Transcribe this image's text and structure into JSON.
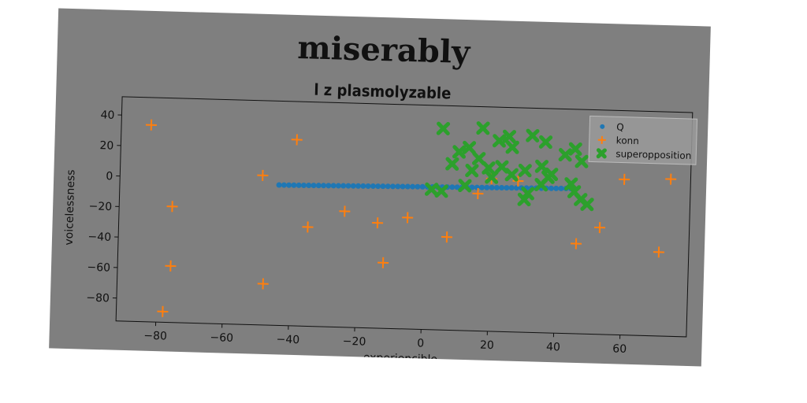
{
  "chart_data": {
    "type": "scatter",
    "title": "miserably",
    "subtitle": "l z plasmolyzable",
    "xlabel": "experiencible",
    "ylabel": "voicelessness",
    "xlim": [
      -92,
      80
    ],
    "ylim": [
      -95,
      52
    ],
    "xticks": [
      -80,
      -60,
      -40,
      -20,
      0,
      20,
      40,
      60
    ],
    "yticks": [
      40,
      20,
      0,
      -20,
      -40,
      -60,
      -80
    ],
    "grid": false,
    "legend_position": "top-right",
    "series": [
      {
        "name": "Q",
        "marker": "circle",
        "color": "#1f77b4",
        "line": {
          "x_start": -44,
          "x_end": 44,
          "y_start": -3,
          "y_end": 0,
          "count": 60
        }
      },
      {
        "name": "konn",
        "marker": "plus",
        "color": "#ff7f0e",
        "points": [
          [
            -83,
            34
          ],
          [
            -39,
            27
          ],
          [
            -49,
            3
          ],
          [
            -76,
            -19
          ],
          [
            -35,
            -30
          ],
          [
            -24,
            -19
          ],
          [
            -14,
            -26
          ],
          [
            -5,
            -22
          ],
          [
            -76,
            -58
          ],
          [
            -48,
            -68
          ],
          [
            -78,
            -88
          ],
          [
            -12,
            -52
          ],
          [
            7,
            -34
          ],
          [
            16,
            -5
          ],
          [
            20,
            5
          ],
          [
            28,
            4
          ],
          [
            46,
            -36
          ],
          [
            53,
            -25
          ],
          [
            60,
            7
          ],
          [
            71,
            -40
          ],
          [
            74,
            8
          ]
        ]
      },
      {
        "name": "superopposition",
        "marker": "x",
        "color": "#2ca02c",
        "points": [
          [
            5,
            37
          ],
          [
            17,
            38
          ],
          [
            22,
            30
          ],
          [
            25,
            33
          ],
          [
            26,
            26
          ],
          [
            32,
            34
          ],
          [
            36,
            30
          ],
          [
            10,
            22
          ],
          [
            13,
            25
          ],
          [
            16,
            18
          ],
          [
            8,
            14
          ],
          [
            14,
            10
          ],
          [
            19,
            12
          ],
          [
            23,
            13
          ],
          [
            26,
            8
          ],
          [
            30,
            11
          ],
          [
            35,
            14
          ],
          [
            38,
            9
          ],
          [
            42,
            22
          ],
          [
            45,
            26
          ],
          [
            47,
            18
          ],
          [
            2,
            -3
          ],
          [
            5,
            -4
          ],
          [
            12,
            0
          ],
          [
            20,
            6
          ],
          [
            31,
            -4
          ],
          [
            35,
            2
          ],
          [
            44,
            3
          ],
          [
            45,
            -2
          ],
          [
            47,
            -7
          ],
          [
            49,
            -10
          ],
          [
            30,
            -8
          ],
          [
            37,
            7
          ]
        ]
      }
    ]
  }
}
